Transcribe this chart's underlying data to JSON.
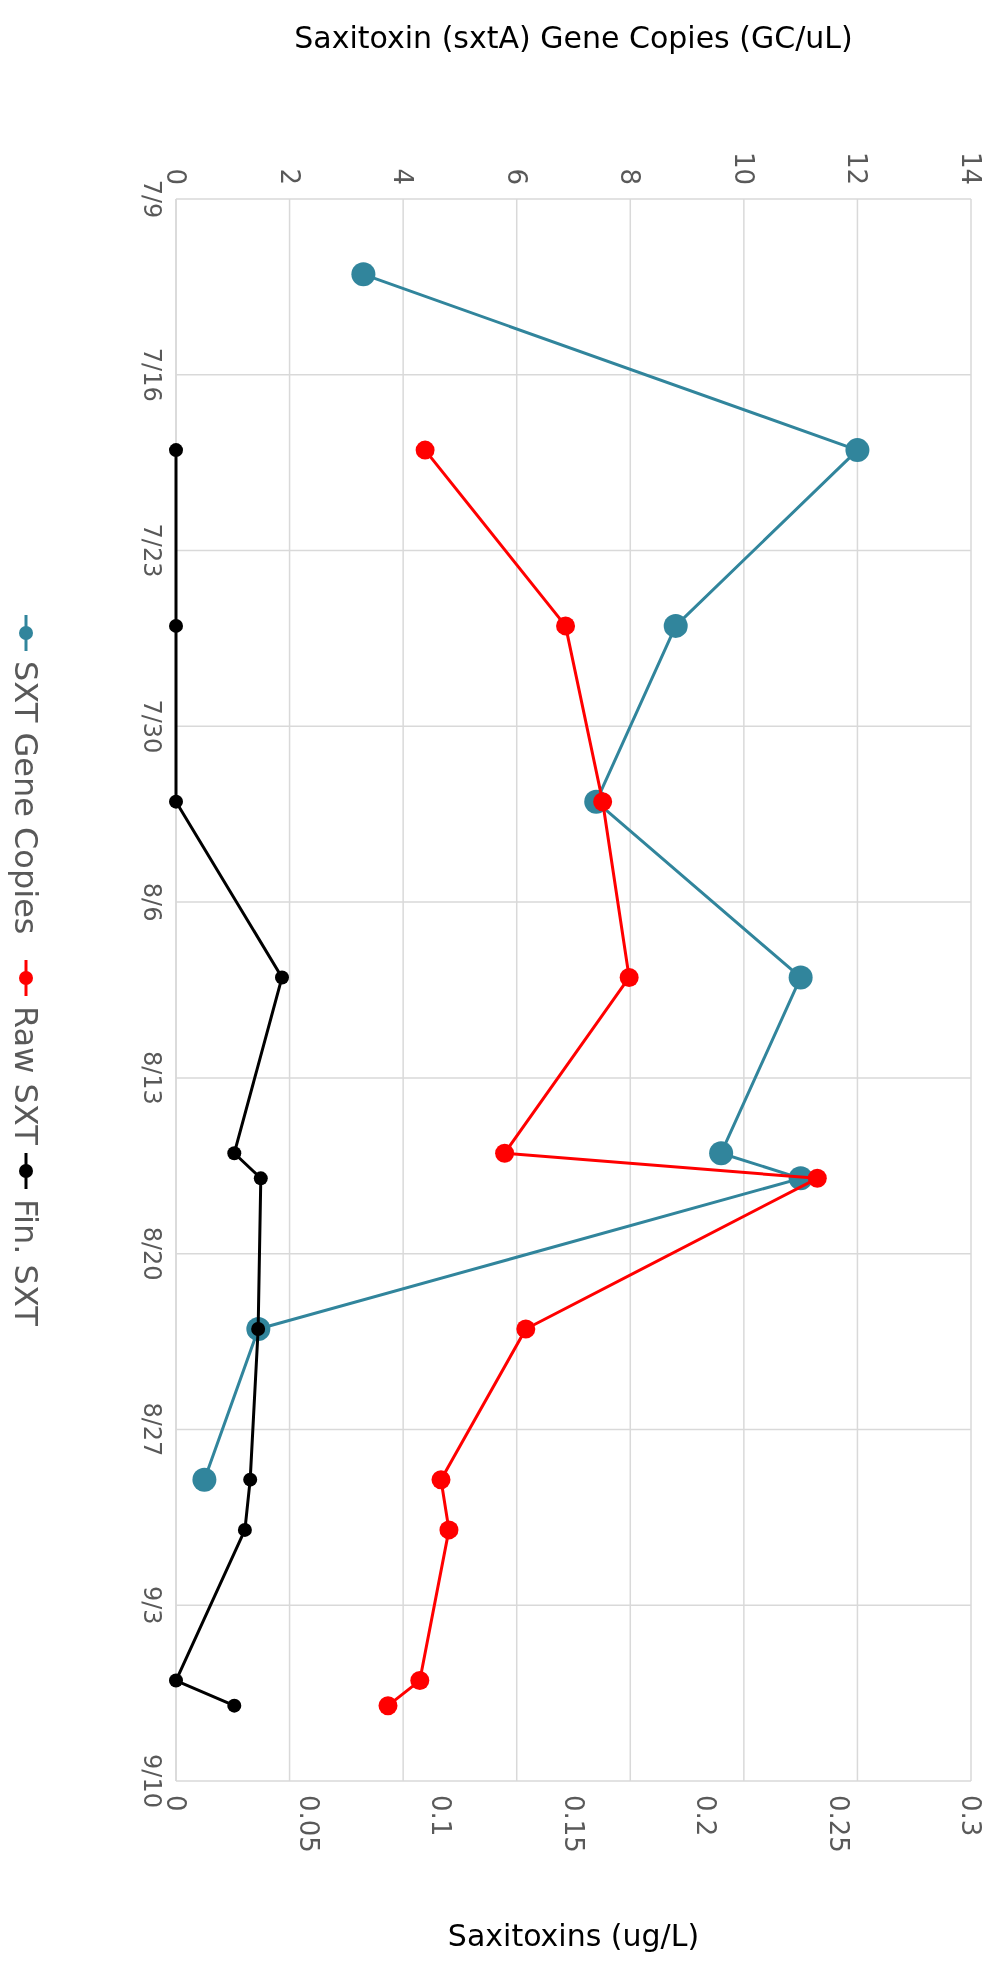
{
  "chart_data": {
    "type": "line",
    "orientation": "horizontal",
    "x2label": "Saxitoxin (sxtA) Gene Copies (GC/uL)",
    "xlabel": "Saxitoxins (ug/L)",
    "ylim": [
      "--09-10",
      "--07-09"
    ],
    "yticks": [
      {
        "value": "--07-09",
        "label": "7/9"
      },
      {
        "value": "--07-16",
        "label": "7/16"
      },
      {
        "value": "--07-23",
        "label": "7/23"
      },
      {
        "value": "--07-30",
        "label": "7/30"
      },
      {
        "value": "--08-06",
        "label": "8/6"
      },
      {
        "value": "--08-13",
        "label": "8/13"
      },
      {
        "value": "--08-20",
        "label": "8/20"
      },
      {
        "value": "--08-27",
        "label": "8/27"
      },
      {
        "value": "--09-03",
        "label": "9/3"
      },
      {
        "value": "--09-10",
        "label": "9/10"
      }
    ],
    "x2lim": [
      0,
      14
    ],
    "x2ticks": [
      0,
      2,
      4,
      6,
      8,
      10,
      12,
      14
    ],
    "xlim": [
      0,
      0.3
    ],
    "xticks": [
      0,
      0.05,
      0.1,
      0.15,
      0.2,
      0.25,
      0.3
    ],
    "grid": true,
    "legend": "left",
    "marker": "circle",
    "series": [
      {
        "name": "SXT Gene Copies",
        "color": "#31859c",
        "axis": "x2",
        "x": [
          "--07-12",
          "--07-19",
          "--07-26",
          "--08-02",
          "--08-09",
          "--08-16",
          "--08-17",
          "--08-23",
          "--08-29"
        ],
        "values": [
          3.3,
          12.0,
          8.8,
          7.4,
          11.0,
          9.6,
          11.0,
          1.45,
          0.5
        ]
      },
      {
        "name": "Raw SXT",
        "color": "#ff0000",
        "x": [
          "--07-19",
          "--07-26",
          "--08-02",
          "--08-09",
          "--08-16",
          "--08-17",
          "--08-23",
          "--08-29",
          "--08-31",
          "--09-06",
          "--09-07"
        ],
        "values": [
          0.094,
          0.147,
          0.161,
          0.171,
          0.124,
          0.242,
          0.132,
          0.1,
          0.103,
          0.092,
          0.08
        ]
      },
      {
        "name": "Fin. SXT",
        "color": "#000000",
        "x": [
          "--07-19",
          "--07-26",
          "--08-02",
          "--08-09",
          "--08-16",
          "--08-17",
          "--08-23",
          "--08-29",
          "--08-31",
          "--09-06",
          "--09-07"
        ],
        "values": [
          0,
          0,
          0,
          0.04,
          0.022,
          0.032,
          0.031,
          0.028,
          0.026,
          0,
          0.022
        ]
      }
    ]
  }
}
